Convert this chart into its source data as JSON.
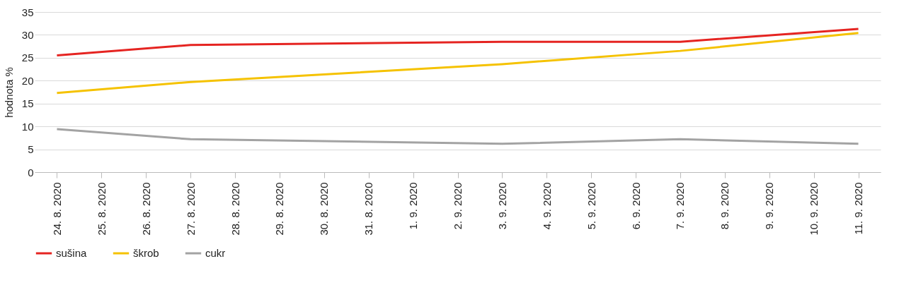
{
  "chart_data": {
    "type": "line",
    "ylabel": "hodnota %",
    "x": [
      "2020-08-24",
      "2020-08-27",
      "2020-09-03",
      "2020-09-07",
      "2020-09-11"
    ],
    "series": [
      {
        "name": "sušina",
        "color": "#e52421",
        "values": [
          25.5,
          27.8,
          28.5,
          28.5,
          31.3
        ]
      },
      {
        "name": "škrob",
        "color": "#f5c200",
        "values": [
          17.3,
          19.7,
          23.6,
          26.5,
          30.4
        ]
      },
      {
        "name": "cukr",
        "color": "#a3a3a3",
        "values": [
          9.4,
          7.2,
          6.2,
          7.2,
          6.2
        ]
      }
    ],
    "xlim": [
      "2020-08-23T12:00",
      "2020-09-11T12:00"
    ],
    "xticks": [
      {
        "value": "2020-08-24",
        "label": "24. 8. 2020"
      },
      {
        "value": "2020-08-25",
        "label": "25. 8. 2020"
      },
      {
        "value": "2020-08-26",
        "label": "26. 8. 2020"
      },
      {
        "value": "2020-08-27",
        "label": "27. 8. 2020"
      },
      {
        "value": "2020-08-28",
        "label": "28. 8. 2020"
      },
      {
        "value": "2020-08-29",
        "label": "29. 8. 2020"
      },
      {
        "value": "2020-08-30",
        "label": "30. 8. 2020"
      },
      {
        "value": "2020-08-31",
        "label": "31. 8. 2020"
      },
      {
        "value": "2020-09-01",
        "label": "1. 9. 2020"
      },
      {
        "value": "2020-09-02",
        "label": "2. 9. 2020"
      },
      {
        "value": "2020-09-03",
        "label": "3. 9. 2020"
      },
      {
        "value": "2020-09-04",
        "label": "4. 9. 2020"
      },
      {
        "value": "2020-09-05",
        "label": "5. 9. 2020"
      },
      {
        "value": "2020-09-06",
        "label": "6. 9. 2020"
      },
      {
        "value": "2020-09-07",
        "label": "7. 9. 2020"
      },
      {
        "value": "2020-09-08",
        "label": "8. 9. 2020"
      },
      {
        "value": "2020-09-09",
        "label": "9. 9. 2020"
      },
      {
        "value": "2020-09-10",
        "label": "10. 9. 2020"
      },
      {
        "value": "2020-09-11",
        "label": "11. 9. 2020"
      }
    ],
    "ylim": [
      0,
      35
    ],
    "yticks": [
      0,
      5,
      10,
      15,
      20,
      25,
      30,
      35
    ],
    "grid": "y",
    "legend": "bottom",
    "marker": "none",
    "line_style": "solid"
  }
}
